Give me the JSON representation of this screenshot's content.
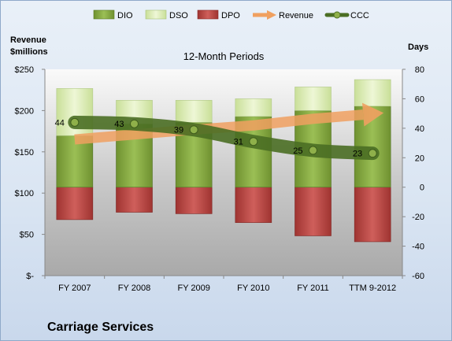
{
  "chart_data": {
    "type": "bar",
    "title": "12-Month Periods",
    "company": "Carriage Services",
    "categories": [
      "FY 2007",
      "FY 2008",
      "FY 2009",
      "FY 2010",
      "FY 2011",
      "TTM 9-2012"
    ],
    "left_axis": {
      "label_line1": "Revenue",
      "label_line2": "$millions",
      "ylim": [
        0,
        250
      ],
      "ticks": [
        {
          "value": 0,
          "label": "$-"
        },
        {
          "value": 50,
          "label": "$50"
        },
        {
          "value": 100,
          "label": "$100"
        },
        {
          "value": 150,
          "label": "$150"
        },
        {
          "value": 200,
          "label": "$200"
        },
        {
          "value": 250,
          "label": "$250"
        }
      ]
    },
    "right_axis": {
      "label": "Days",
      "ylim": [
        -60,
        80
      ],
      "ticks": [
        {
          "value": -60,
          "label": "-60"
        },
        {
          "value": -40,
          "label": "-40"
        },
        {
          "value": -20,
          "label": "-20"
        },
        {
          "value": 0,
          "label": "0"
        },
        {
          "value": 20,
          "label": "20"
        },
        {
          "value": 40,
          "label": "40"
        },
        {
          "value": 60,
          "label": "60"
        },
        {
          "value": 80,
          "label": "80"
        }
      ]
    },
    "series": [
      {
        "name": "DIO",
        "axis": "right",
        "color": "#7fa03a",
        "values": [
          35,
          43,
          44,
          48,
          52,
          55
        ]
      },
      {
        "name": "DSO",
        "axis": "right",
        "color": "#d7eab0",
        "values": [
          32,
          16,
          15,
          12,
          16,
          18
        ]
      },
      {
        "name": "DPO",
        "axis": "right",
        "color": "#b5413f",
        "values": [
          -22,
          -17,
          -18,
          -24,
          -33,
          -37
        ]
      },
      {
        "name": "Revenue",
        "axis": "left",
        "color": "#f0a060",
        "values": [
          165,
          171,
          177,
          182,
          190,
          196
        ]
      },
      {
        "name": "CCC",
        "axis": "right",
        "color": "#4a6e24",
        "values": [
          44,
          43,
          39,
          31,
          25,
          23
        ]
      }
    ],
    "ccc_labels": [
      "44",
      "43",
      "39",
      "31",
      "25",
      "23"
    ],
    "legend_position": "top",
    "grid": false
  }
}
